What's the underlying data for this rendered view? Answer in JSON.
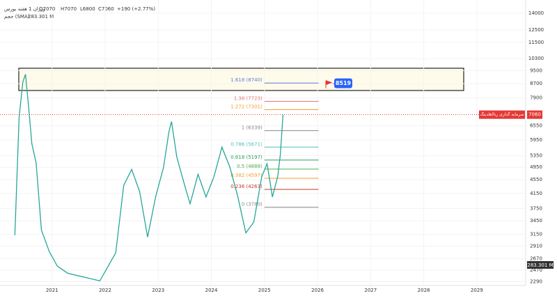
{
  "chart_data": {
    "type": "line",
    "header": "ورزان 1 هفته بورس",
    "ohlc": {
      "open": "O7070",
      "high": "H7070",
      "low": "L6800",
      "close": "C7060",
      "change": "+190 (+2.77%)"
    },
    "volume_title": "حجم (SMA)",
    "volume_value": "283.301 M",
    "symbol_label": "سرمایه گذاری رنا(هلدینگ",
    "last_price": 7060,
    "callout": 8519,
    "log_scale": true,
    "color": "#26a69a",
    "x": [
      2020.3,
      2020.38,
      2020.45,
      2020.5,
      2020.56,
      2020.62,
      2020.7,
      2020.8,
      2020.95,
      2021.1,
      2021.3,
      2021.6,
      2021.9,
      2022.2,
      2022.35,
      2022.5,
      2022.65,
      2022.8,
      2022.95,
      2023.1,
      2023.2,
      2023.25,
      2023.35,
      2023.5,
      2023.6,
      2023.75,
      2023.9,
      2024.05,
      2024.2,
      2024.35,
      2024.5,
      2024.65,
      2024.8,
      2024.95,
      2025.05,
      2025.15,
      2025.25,
      2025.3,
      2025.35
    ],
    "values": [
      3130,
      6950,
      8800,
      9270,
      7400,
      5800,
      5100,
      3240,
      2800,
      2540,
      2420,
      2360,
      2300,
      2780,
      4380,
      4880,
      4200,
      3090,
      4050,
      4950,
      6270,
      6740,
      5300,
      4370,
      3870,
      4720,
      4050,
      4650,
      5670,
      4950,
      4050,
      3180,
      3420,
      4650,
      5070,
      4050,
      4650,
      5400,
      7060
    ],
    "fib_levels": [
      {
        "label": "1.618 (8740)",
        "value": 8740,
        "color": "#5b7fd6"
      },
      {
        "label": "1.38 (7723)",
        "value": 7723,
        "color": "#e57373"
      },
      {
        "label": "1.272 (7301)",
        "value": 7301,
        "color": "#f0a030"
      },
      {
        "label": "1 (6339)",
        "value": 6339,
        "color": "#888888"
      },
      {
        "label": "0.786 (5671)",
        "value": 5671,
        "color": "#4dc0c0"
      },
      {
        "label": "0.618 (5197)",
        "value": 5197,
        "color": "#2e9e5e"
      },
      {
        "label": "0.5 (4888)",
        "value": 4888,
        "color": "#4caf50"
      },
      {
        "label": "0.382 (4597)",
        "value": 4597,
        "color": "#f0a030"
      },
      {
        "label": "0.236 (4263)",
        "value": 4263,
        "color": "#c0392b"
      },
      {
        "label": "0 (3780)",
        "value": 3780,
        "color": "#888888"
      }
    ],
    "xlim": [
      2020.02,
      2029.92
    ],
    "xticks": [
      2021,
      2022,
      2023,
      2024,
      2025,
      2026,
      2027,
      2028,
      2029
    ],
    "ylim": [
      2230,
      15300
    ],
    "yticks": [
      14000,
      12500,
      11500,
      10300,
      9500,
      8700,
      7900,
      6550,
      5950,
      5350,
      4950,
      4550,
      4150,
      3750,
      3450,
      3150,
      2910,
      2670,
      2470,
      2290
    ]
  }
}
